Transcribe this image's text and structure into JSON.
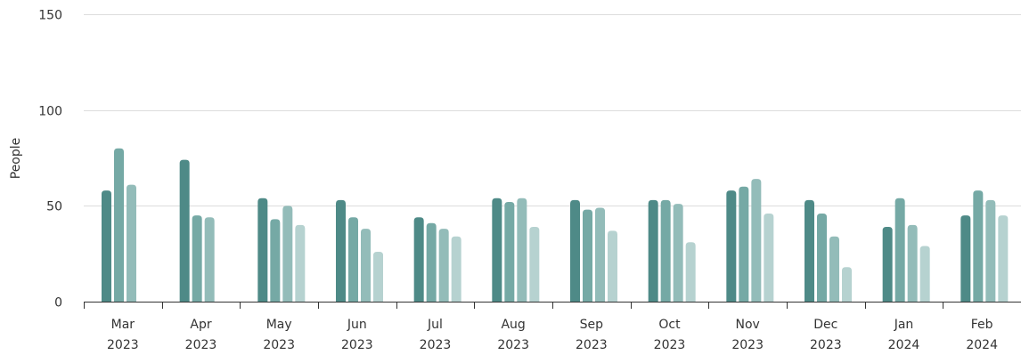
{
  "chart_data": {
    "type": "bar",
    "ylabel": "People",
    "ylim": [
      0,
      150
    ],
    "yticks": [
      0,
      50,
      100,
      150
    ],
    "grid": true,
    "categories": [
      {
        "month": "Mar",
        "year": "2023"
      },
      {
        "month": "Apr",
        "year": "2023"
      },
      {
        "month": "May",
        "year": "2023"
      },
      {
        "month": "Jun",
        "year": "2023"
      },
      {
        "month": "Jul",
        "year": "2023"
      },
      {
        "month": "Aug",
        "year": "2023"
      },
      {
        "month": "Sep",
        "year": "2023"
      },
      {
        "month": "Oct",
        "year": "2023"
      },
      {
        "month": "Nov",
        "year": "2023"
      },
      {
        "month": "Dec",
        "year": "2023"
      },
      {
        "month": "Jan",
        "year": "2024"
      },
      {
        "month": "Feb",
        "year": "2024"
      }
    ],
    "series_colors": [
      "#4e8a87",
      "#75a9a5",
      "#93bcb9",
      "#b6d2d0"
    ],
    "series": [
      {
        "values": [
          58,
          74,
          54,
          53,
          44,
          54,
          53,
          53,
          58,
          53,
          39,
          45
        ]
      },
      {
        "values": [
          80,
          45,
          43,
          44,
          41,
          52,
          48,
          53,
          60,
          46,
          54,
          58
        ]
      },
      {
        "values": [
          61,
          44,
          50,
          38,
          38,
          54,
          49,
          51,
          64,
          34,
          40,
          53
        ]
      },
      {
        "values": [
          null,
          null,
          40,
          26,
          34,
          39,
          37,
          31,
          46,
          18,
          29,
          45
        ]
      }
    ]
  }
}
